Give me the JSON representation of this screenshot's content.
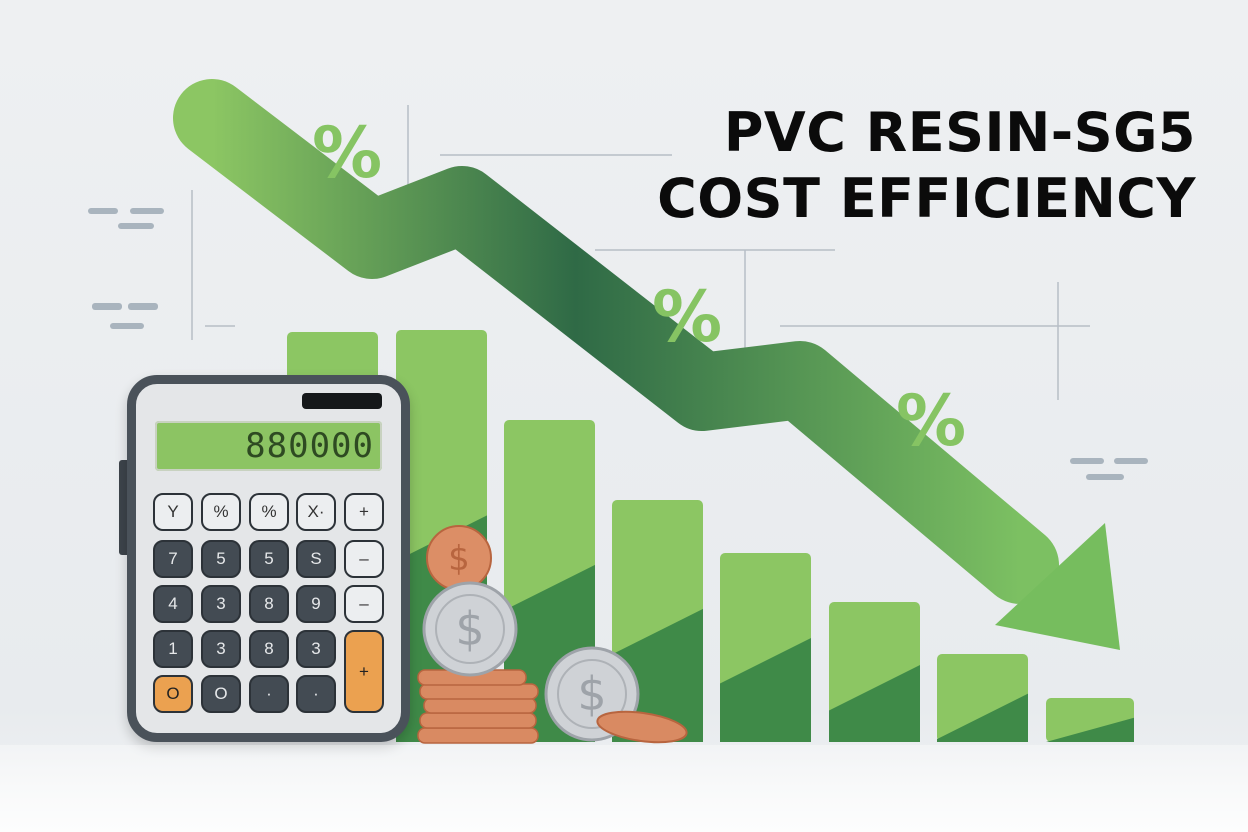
{
  "title": {
    "line1": "PVC RESIN-SG5",
    "line2": "COST EFFICIENCY"
  },
  "percent_symbols": [
    "%",
    "%",
    "%"
  ],
  "calculator": {
    "display": "880000",
    "keys": [
      [
        "Y",
        "%",
        "%",
        "X·",
        "+"
      ],
      [
        "7",
        "5",
        "5",
        "S",
        "–"
      ],
      [
        "4",
        "3",
        "8",
        "9",
        "–"
      ],
      [
        "1",
        "3",
        "8",
        "3",
        "+"
      ],
      [
        "O",
        "O",
        "·",
        "·"
      ]
    ]
  },
  "colors": {
    "light_green": "#8cc663",
    "dark_green": "#3f8a48",
    "arrow_dark": "#2f6a44",
    "orange": "#eba150",
    "copper": "#d98a62",
    "silver": "#c9ccd0"
  }
}
